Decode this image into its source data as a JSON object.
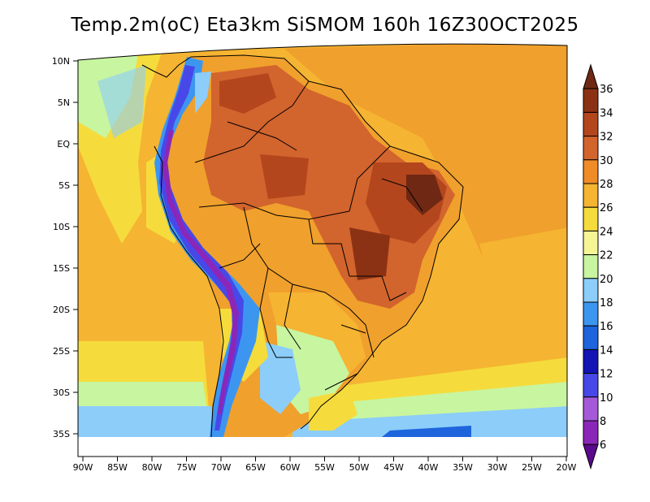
{
  "title": "Temp.2m(oC) Eta3km SiSMOM 160h 16Z30OCT2025",
  "latitude_labels": [
    "10N",
    "5N",
    "EQ",
    "5S",
    "10S",
    "15S",
    "20S",
    "25S",
    "30S",
    "35S"
  ],
  "longitude_labels": [
    "90W",
    "85W",
    "80W",
    "75W",
    "70W",
    "65W",
    "60W",
    "55W",
    "50W",
    "45W",
    "40W",
    "35W",
    "30W",
    "25W",
    "20W"
  ],
  "colorbar": {
    "labels": [
      "6",
      "8",
      "10",
      "12",
      "14",
      "16",
      "18",
      "20",
      "22",
      "24",
      "26",
      "28",
      "30",
      "32",
      "34",
      "36"
    ],
    "colors": [
      "#5a0a8c",
      "#8b27b8",
      "#a45ad8",
      "#4848e8",
      "#1414b4",
      "#1e64dc",
      "#3c96f0",
      "#8ccdfa",
      "#c8f5a0",
      "#f5f596",
      "#f5dc3c",
      "#f5b432",
      "#f08c28",
      "#d2642d",
      "#b4461e",
      "#8c3214",
      "#6e2814"
    ]
  }
}
